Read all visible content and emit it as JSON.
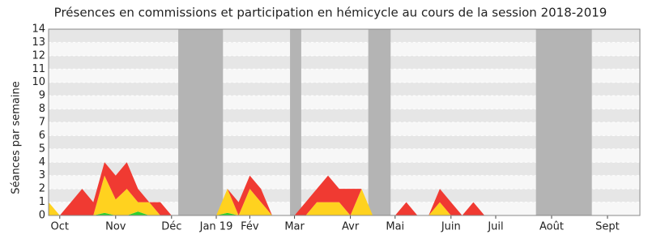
{
  "chart_data": {
    "type": "stacked_area",
    "title": "Présences en commissions et participation en hémicycle au cours de la session 2018-2019",
    "y_label": "Séances par semaine",
    "categories": [
      null,
      "Oct",
      null,
      null,
      null,
      null,
      "Nov",
      null,
      null,
      null,
      null,
      "Déc",
      null,
      null,
      null,
      "Jan 19",
      null,
      null,
      "Fév",
      null,
      null,
      null,
      "Mar",
      null,
      null,
      null,
      null,
      "Avr",
      null,
      null,
      null,
      "Mai",
      null,
      null,
      null,
      null,
      "Juin",
      null,
      null,
      null,
      "Juil",
      null,
      null,
      null,
      null,
      "Août",
      null,
      null,
      null,
      null,
      "Sept",
      null,
      null
    ],
    "series": [
      {
        "color": "#2ed02e",
        "values": [
          0,
          0,
          0,
          0,
          0,
          0.2,
          0,
          0,
          0.3,
          0,
          0,
          0,
          0,
          0,
          0,
          0,
          0.2,
          0,
          0,
          0,
          0,
          0,
          0,
          0,
          0,
          0,
          0,
          0,
          0,
          0,
          0,
          0,
          0,
          0,
          0,
          0,
          0,
          0,
          0,
          0,
          0,
          0,
          0,
          0,
          0,
          0,
          0,
          0,
          0,
          0,
          0,
          0,
          0
        ]
      },
      {
        "color": "#ffd21f",
        "values": [
          1,
          0,
          0,
          0,
          0,
          2.8,
          1.2,
          2,
          0.7,
          1,
          0,
          0,
          0,
          0,
          0,
          0,
          1.8,
          0,
          2,
          1,
          0,
          0,
          0,
          0,
          1,
          1,
          1,
          0,
          2,
          0,
          0,
          0,
          0,
          0,
          0,
          1,
          0,
          0,
          0,
          0,
          0,
          0,
          0,
          0,
          0,
          0,
          0,
          0,
          0,
          0,
          0,
          0,
          0
        ]
      },
      {
        "color": "#f03a32",
        "values": [
          0,
          0,
          1,
          2,
          1,
          1,
          1.8,
          2,
          1,
          0,
          1,
          0,
          0,
          0,
          0,
          0,
          0,
          1,
          1,
          1,
          0,
          0,
          0,
          1,
          1,
          2,
          1,
          2,
          0,
          0,
          0,
          0,
          1,
          0,
          0,
          1,
          1,
          0,
          1,
          0,
          0,
          0,
          0,
          0,
          0,
          0,
          0,
          0,
          0,
          0,
          0,
          0,
          0
        ]
      }
    ],
    "shaded_ranges": [
      [
        11.6,
        15.6
      ],
      [
        21.6,
        22.6
      ],
      [
        28.6,
        30.6
      ],
      [
        43.6,
        48.6
      ]
    ],
    "shade_color": "#b4b4b4",
    "ylim": [
      0,
      14
    ],
    "yticks": [
      0,
      1,
      2,
      3,
      4,
      5,
      6,
      7,
      8,
      9,
      10,
      11,
      12,
      13,
      14
    ],
    "grid": true
  }
}
